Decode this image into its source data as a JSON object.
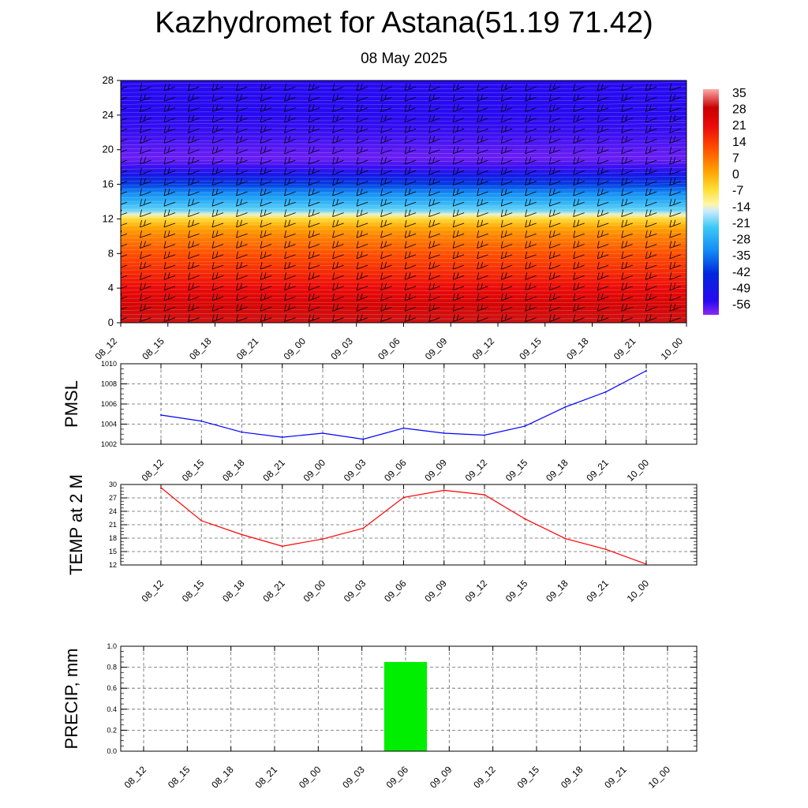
{
  "title": "Kazhydromet for Astana(51.19 71.42)",
  "subtitle": "08 May 2025",
  "chart_data": [
    {
      "type": "heatmap",
      "variable": "temperature with height, wind barbs",
      "x_ticks": [
        "08_12",
        "08_15",
        "08_18",
        "08_21",
        "09_00",
        "09_03",
        "09_06",
        "09_09",
        "09_12",
        "09_15",
        "09_18",
        "09_21",
        "10_00"
      ],
      "y_ticks": [
        0,
        4,
        8,
        12,
        16,
        20,
        24,
        28
      ],
      "ylim": [
        0,
        28
      ],
      "colorbar_labels": [
        "35",
        "28",
        "21",
        "14",
        "7",
        "0",
        "-7",
        "-14",
        "-21",
        "-28",
        "-35",
        "-42",
        "-49",
        "-56"
      ],
      "colorbar_range": [
        -60,
        38
      ],
      "profile_levels": [
        0,
        2,
        4,
        6,
        8,
        10,
        11,
        12,
        12.5,
        13,
        14,
        15,
        16,
        17,
        18,
        19,
        20,
        21,
        22,
        24,
        26,
        28
      ],
      "profile_values": [
        31,
        27,
        22,
        17,
        12,
        6,
        2,
        -5,
        -13,
        -20,
        -26,
        -32,
        -40,
        -48,
        -55,
        -58,
        -57,
        -56,
        -55,
        -54,
        -54,
        -54
      ],
      "colors": {
        "hot": "#c80000",
        "orange": "#ff8c00",
        "yellow": "#ffe65a",
        "cyan": "#32bef5",
        "blue": "#0a14f5",
        "violet": "#8c28f5"
      }
    },
    {
      "type": "line",
      "ylabel": "PMSL",
      "x_ticks": [
        "08_12",
        "08_15",
        "08_18",
        "08_21",
        "09_00",
        "09_03",
        "09_06",
        "09_09",
        "09_12",
        "09_15",
        "09_18",
        "09_21",
        "10_00"
      ],
      "y_ticks": [
        "1002",
        "1004",
        "1006",
        "1008",
        "1010"
      ],
      "ylim": [
        1002,
        1010
      ],
      "values": [
        1004.9,
        1004.3,
        1003.2,
        1002.7,
        1003.1,
        1002.5,
        1003.6,
        1003.1,
        1002.9,
        1003.8,
        1005.7,
        1007.2,
        1009.3
      ],
      "color": "#0000ff"
    },
    {
      "type": "line",
      "ylabel": "TEMP at 2 M",
      "x_ticks": [
        "08_12",
        "08_15",
        "08_18",
        "08_21",
        "09_00",
        "09_03",
        "09_06",
        "09_09",
        "09_12",
        "09_15",
        "09_18",
        "09_21",
        "10_00"
      ],
      "y_ticks": [
        "12",
        "15",
        "18",
        "21",
        "24",
        "27",
        "30"
      ],
      "ylim": [
        12,
        30
      ],
      "values": [
        29.3,
        21.9,
        18.8,
        16.2,
        17.8,
        20.2,
        27.1,
        28.7,
        27.7,
        22.3,
        17.9,
        15.5,
        12.2
      ],
      "color": "#ff0000"
    },
    {
      "type": "bar",
      "ylabel": "PRECIP, mm",
      "x_ticks": [
        "08_12",
        "08_15",
        "08_18",
        "08_21",
        "09_00",
        "09_03",
        "09_06",
        "09_09",
        "09_12",
        "09_15",
        "09_18",
        "09_21",
        "10_00"
      ],
      "y_ticks": [
        "0.0",
        "0.2",
        "0.4",
        "0.6",
        "0.8",
        "1.0"
      ],
      "ylim": [
        0,
        1
      ],
      "values": [
        0,
        0,
        0,
        0,
        0,
        0,
        0.85,
        0,
        0,
        0,
        0,
        0,
        0
      ],
      "color": "#00ee00"
    }
  ]
}
